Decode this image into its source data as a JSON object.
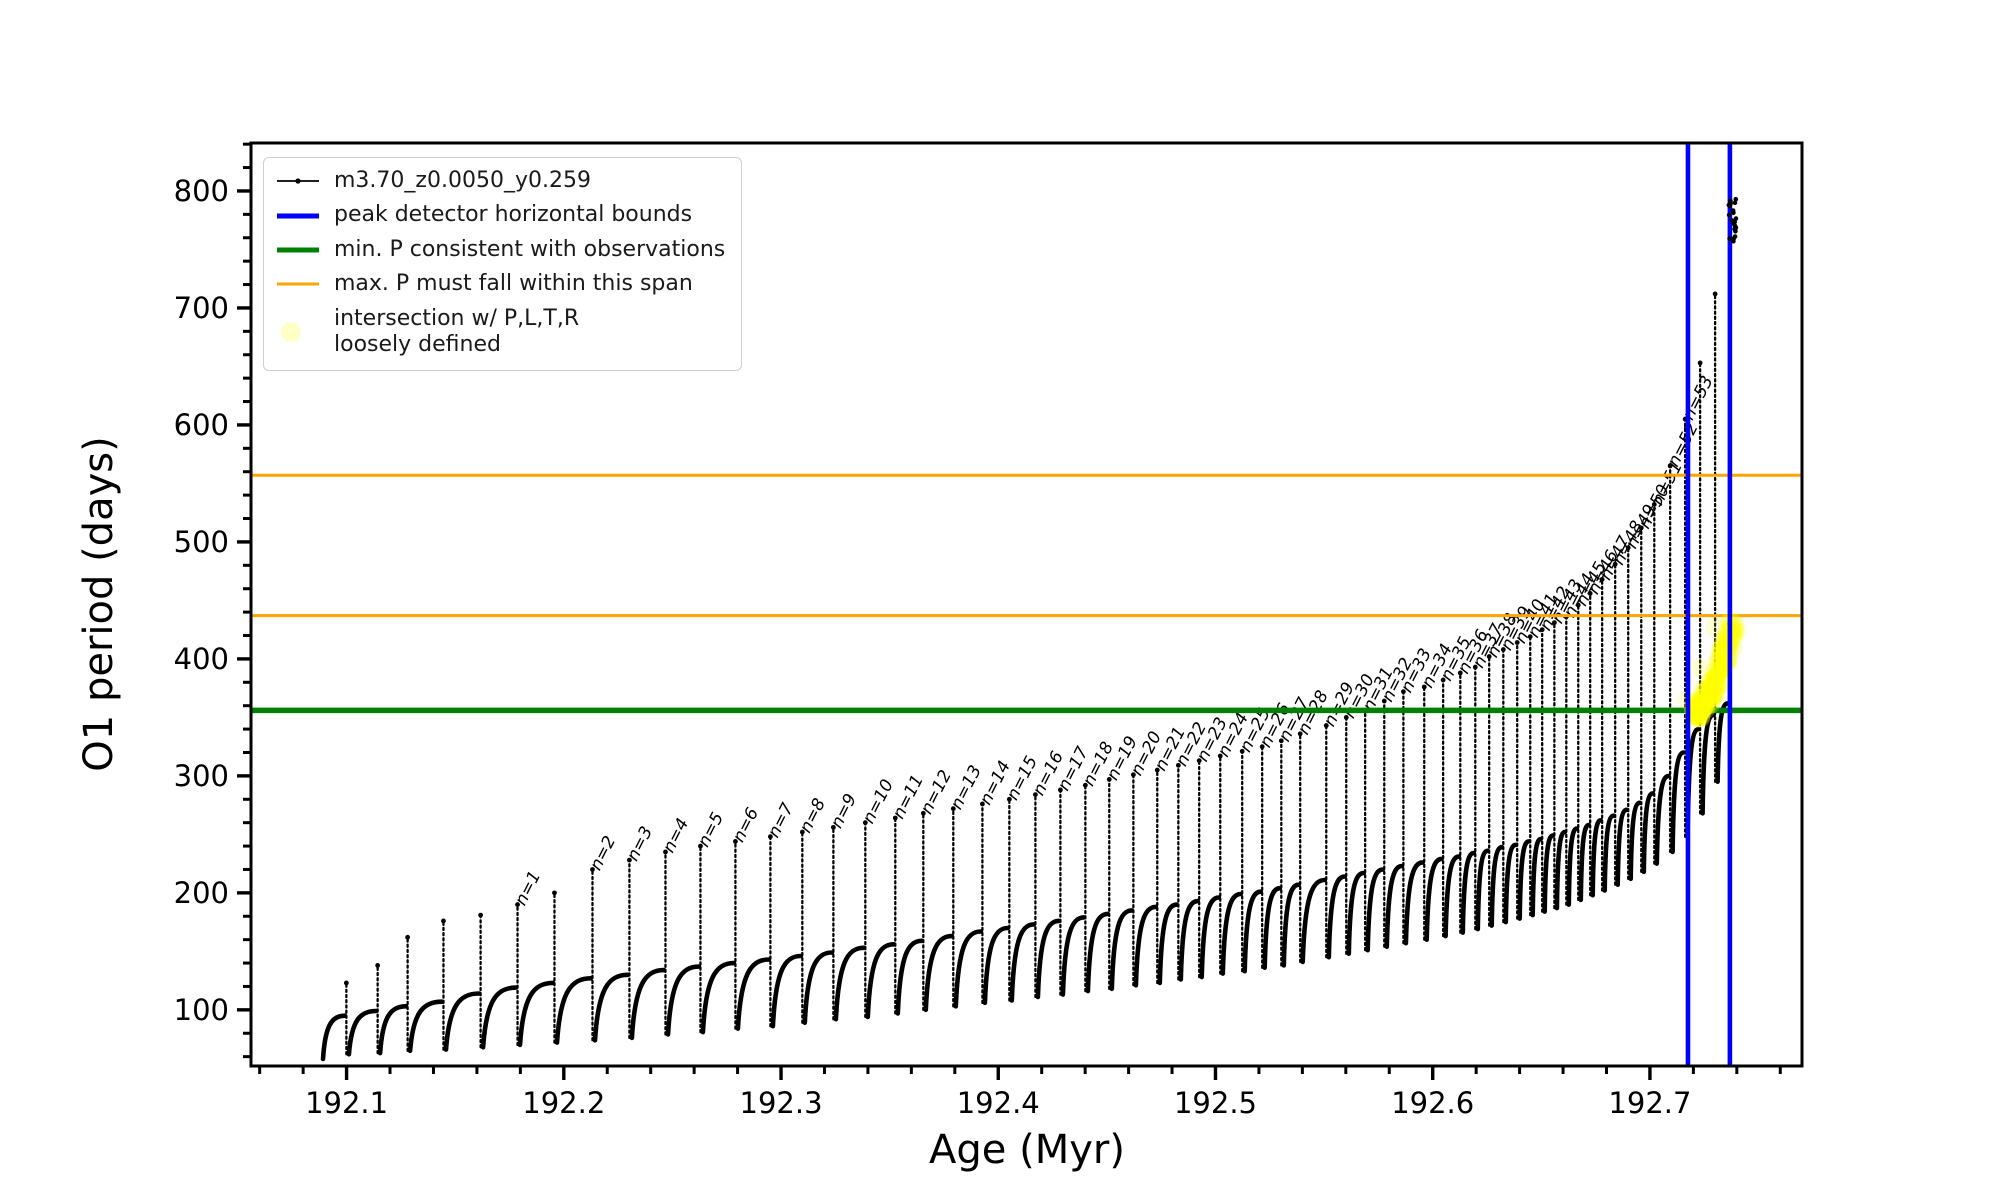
{
  "chart_data": {
    "type": "line",
    "series_label": "m3.70_z0.0050_y0.259",
    "xlabel": "Age (Myr)",
    "ylabel": "O1 period (days)",
    "xlim": [
      192.056,
      192.77
    ],
    "ylim": [
      52,
      841
    ],
    "x_major_ticks": [
      192.1,
      192.2,
      192.3,
      192.4,
      192.5,
      192.6,
      192.7
    ],
    "x_tick_labels": [
      "192.1",
      "192.2",
      "192.3",
      "192.4",
      "192.5",
      "192.6",
      "192.7"
    ],
    "x_minor_step": 0.02,
    "y_major_ticks": [
      100,
      200,
      300,
      400,
      500,
      600,
      700,
      800
    ],
    "y_tick_labels": [
      "100",
      "200",
      "300",
      "400",
      "500",
      "600",
      "700",
      "800"
    ],
    "y_minor_step": 20,
    "grid": false,
    "colors": {
      "series": "#000000",
      "peak_bounds": "#0000ff",
      "min_p": "#008000",
      "max_p_span": "#ffa500",
      "intersection": "#ffff00"
    },
    "h_lines": [
      {
        "y": 557,
        "color": "#ffa500",
        "lw": 3,
        "name": "max-P-span-upper"
      },
      {
        "y": 437,
        "color": "#ffa500",
        "lw": 3,
        "name": "max-P-span-lower"
      },
      {
        "y": 356,
        "color": "#008000",
        "lw": 5.5,
        "name": "min-P-consistent"
      }
    ],
    "v_lines": [
      {
        "x": 192.7175,
        "color": "#0000ff",
        "lw": 4.6,
        "name": "peak-detector-left-bound"
      },
      {
        "x": 192.7368,
        "color": "#0000ff",
        "lw": 4.6,
        "name": "peak-detector-right-bound"
      }
    ],
    "annotation_prefix": "n=",
    "cycles": [
      [
        192.088,
        0,
        0,
        58,
        0
      ],
      [
        192.0999,
        123,
        95,
        62,
        0
      ],
      [
        192.1143,
        138,
        99,
        63,
        0
      ],
      [
        192.1281,
        162,
        103,
        65,
        0
      ],
      [
        192.1446,
        176,
        107,
        66,
        0
      ],
      [
        192.1617,
        181,
        114,
        68,
        0
      ],
      [
        192.1787,
        190,
        119,
        70,
        1
      ],
      [
        192.1957,
        200,
        123,
        72,
        0
      ],
      [
        192.2132,
        220,
        127,
        74,
        2
      ],
      [
        192.2302,
        228,
        130,
        76,
        3
      ],
      [
        192.2468,
        235,
        134,
        79,
        4
      ],
      [
        192.2629,
        240,
        137,
        81,
        5
      ],
      [
        192.279,
        244,
        140,
        84,
        6
      ],
      [
        192.2951,
        248,
        143,
        86,
        7
      ],
      [
        192.3098,
        252,
        146,
        89,
        8
      ],
      [
        192.3241,
        256,
        149,
        92,
        9
      ],
      [
        192.3388,
        260,
        153,
        94,
        10
      ],
      [
        192.3526,
        264,
        156,
        97,
        11
      ],
      [
        192.3655,
        268,
        159,
        100,
        12
      ],
      [
        192.3793,
        272,
        163,
        103,
        13
      ],
      [
        192.3927,
        276,
        167,
        106,
        14
      ],
      [
        192.4051,
        280,
        170,
        108,
        15
      ],
      [
        192.4171,
        284,
        173,
        111,
        16
      ],
      [
        192.4286,
        288,
        176,
        113,
        17
      ],
      [
        192.4401,
        292,
        179,
        116,
        18
      ],
      [
        192.4511,
        297,
        182,
        118,
        19
      ],
      [
        192.4622,
        301,
        185,
        121,
        20
      ],
      [
        192.4732,
        305,
        188,
        123,
        21
      ],
      [
        192.4829,
        309,
        190,
        126,
        22
      ],
      [
        192.4925,
        313,
        193,
        128,
        23
      ],
      [
        192.5022,
        317,
        196,
        131,
        24
      ],
      [
        192.5123,
        321,
        199,
        133,
        25
      ],
      [
        192.5215,
        325,
        201,
        136,
        26
      ],
      [
        192.5303,
        330,
        204,
        138,
        27
      ],
      [
        192.539,
        336,
        207,
        141,
        28
      ],
      [
        192.551,
        343,
        211,
        145,
        29
      ],
      [
        192.5602,
        350,
        214,
        148,
        30
      ],
      [
        192.5689,
        356,
        217,
        151,
        31
      ],
      [
        192.5777,
        364,
        220,
        154,
        32
      ],
      [
        192.5865,
        372,
        223,
        157,
        33
      ],
      [
        192.5961,
        376,
        226,
        160,
        34
      ],
      [
        192.6048,
        382,
        229,
        163,
        35
      ],
      [
        192.6127,
        388,
        231,
        166,
        36
      ],
      [
        192.6196,
        393,
        234,
        169,
        37
      ],
      [
        192.626,
        402,
        236,
        172,
        38
      ],
      [
        192.6325,
        408,
        239,
        175,
        39
      ],
      [
        192.6389,
        414,
        241,
        178,
        40
      ],
      [
        192.6449,
        419,
        244,
        181,
        41
      ],
      [
        192.6504,
        425,
        246,
        184,
        42
      ],
      [
        192.656,
        431,
        249,
        187,
        43
      ],
      [
        192.6615,
        436,
        252,
        190,
        44
      ],
      [
        192.667,
        446,
        255,
        194,
        45
      ],
      [
        192.6725,
        456,
        258,
        198,
        46
      ],
      [
        192.678,
        468,
        262,
        202,
        47
      ],
      [
        192.684,
        481,
        266,
        207,
        48
      ],
      [
        192.69,
        495,
        271,
        212,
        49
      ],
      [
        192.696,
        512,
        277,
        218,
        50
      ],
      [
        192.702,
        532,
        285,
        225,
        51
      ],
      [
        192.7093,
        565,
        300,
        235,
        52
      ],
      [
        192.7162,
        605,
        320,
        248,
        53
      ],
      [
        192.7231,
        653,
        340,
        268,
        0
      ],
      [
        192.73,
        712,
        352,
        295,
        0
      ],
      [
        192.7365,
        430,
        362,
        320,
        0
      ]
    ],
    "yellow_region": {
      "x_range": [
        192.7203,
        192.7385
      ],
      "y_range": [
        354,
        429
      ],
      "count": 150,
      "marker_radius": 9,
      "opacity": 0.25,
      "outliers": [
        [
          192.717,
          365
        ],
        [
          192.7206,
          355
        ],
        [
          192.7229,
          392
        ],
        [
          192.7243,
          374
        ],
        [
          192.7298,
          427
        ],
        [
          192.733,
          399
        ],
        [
          192.7367,
          432
        ]
      ]
    },
    "top_cluster": {
      "x": 192.7378,
      "y_range": [
        757,
        793
      ],
      "count": 22
    },
    "legend_entries": [
      {
        "type": "line-dot",
        "color": "#000000",
        "lw": 1.8,
        "label": "m3.70_z0.0050_y0.259"
      },
      {
        "type": "line",
        "color": "#0000ff",
        "lw": 5,
        "label": "peak detector horizontal bounds"
      },
      {
        "type": "line",
        "color": "#008000",
        "lw": 5,
        "label": "min. P consistent with observations"
      },
      {
        "type": "line",
        "color": "#ffa500",
        "lw": 3,
        "label": "max. P must fall within this span"
      },
      {
        "type": "dot",
        "color": "#ffff00",
        "lw": 0,
        "label": "intersection w/ P,L,T,R\nloosely defined"
      }
    ]
  }
}
